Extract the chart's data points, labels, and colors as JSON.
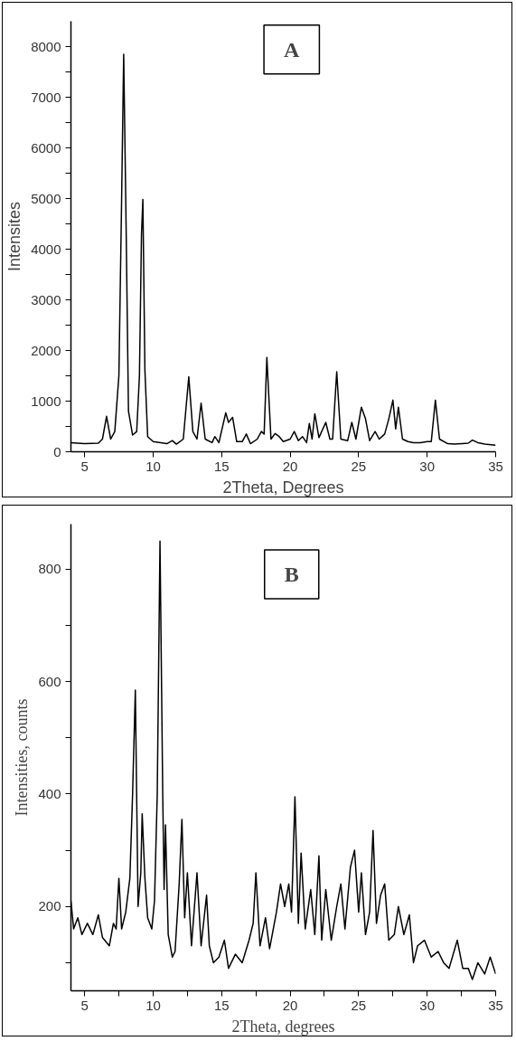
{
  "chart_data": [
    {
      "type": "line",
      "annotations": [
        "A"
      ],
      "xlabel": "2Theta, Degrees",
      "ylabel": "Intensites",
      "xlim": [
        4,
        35
      ],
      "ylim": [
        0,
        8500
      ],
      "xticks": [
        5,
        10,
        15,
        20,
        25,
        30,
        35
      ],
      "yticks": [
        0,
        {
          "value": 500,
          "label": null
        },
        1000,
        {
          "value": 1500,
          "label": null
        },
        2000,
        {
          "value": 2500,
          "label": null
        },
        3000,
        {
          "value": 3500,
          "label": null
        },
        4000,
        {
          "value": 4500,
          "label": null
        },
        5000,
        {
          "value": 5500,
          "label": null
        },
        6000,
        {
          "value": 6500,
          "label": null
        },
        7000,
        {
          "value": 7500,
          "label": null
        },
        8000
      ],
      "grid": false,
      "x": [
        4,
        5,
        6,
        6.3,
        6.6,
        6.9,
        7.2,
        7.5,
        7.7,
        7.85,
        8.0,
        8.2,
        8.5,
        8.8,
        9.0,
        9.15,
        9.25,
        9.4,
        9.6,
        10,
        11,
        11.4,
        11.7,
        12.2,
        12.6,
        12.9,
        13.2,
        13.5,
        13.8,
        14.3,
        14.5,
        14.8,
        15.3,
        15.5,
        15.8,
        16.1,
        16.5,
        16.8,
        17.1,
        17.6,
        17.9,
        18.1,
        18.3,
        18.6,
        18.9,
        19.2,
        19.5,
        20,
        20.3,
        20.6,
        20.9,
        21.2,
        21.4,
        21.6,
        21.8,
        22.1,
        22.6,
        22.9,
        23.1,
        23.4,
        23.7,
        24.2,
        24.5,
        24.8,
        25.2,
        25.5,
        25.8,
        26.2,
        26.5,
        26.9,
        27.2,
        27.5,
        27.7,
        27.9,
        28.2,
        28.6,
        29,
        29.5,
        30,
        30.3,
        30.6,
        30.9,
        31.5,
        32,
        33,
        33.3,
        33.7,
        34.2,
        35
      ],
      "series": [
        {
          "color": "#000000",
          "values": [
            180,
            160,
            170,
            250,
            700,
            250,
            400,
            1500,
            5000,
            7850,
            5000,
            800,
            330,
            400,
            1500,
            4300,
            4980,
            1600,
            300,
            200,
            160,
            220,
            150,
            250,
            1480,
            400,
            250,
            960,
            250,
            180,
            300,
            180,
            770,
            580,
            680,
            200,
            200,
            350,
            160,
            250,
            400,
            350,
            1860,
            250,
            360,
            300,
            200,
            250,
            400,
            220,
            300,
            180,
            560,
            250,
            750,
            280,
            580,
            250,
            250,
            1580,
            250,
            220,
            580,
            250,
            880,
            650,
            220,
            400,
            250,
            350,
            650,
            1020,
            450,
            880,
            250,
            200,
            180,
            180,
            200,
            200,
            1020,
            250,
            160,
            150,
            170,
            230,
            180,
            150,
            130
          ]
        }
      ]
    },
    {
      "type": "line",
      "annotations": [
        "B"
      ],
      "xlabel": "2Theta, degrees",
      "ylabel": "Intensities, counts",
      "xlim": [
        4,
        35
      ],
      "ylim": [
        50,
        880
      ],
      "xticks": [
        5,
        {
          "value": 7.5,
          "label": null
        },
        10,
        {
          "value": 12.5,
          "label": null
        },
        15,
        {
          "value": 17.5,
          "label": null
        },
        20,
        {
          "value": 22.5,
          "label": null
        },
        25,
        {
          "value": 27.5,
          "label": null
        },
        30,
        {
          "value": 32.5,
          "label": null
        },
        35
      ],
      "yticks": [
        {
          "value": 100,
          "label": null
        },
        200,
        {
          "value": 300,
          "label": null
        },
        400,
        {
          "value": 500,
          "label": null
        },
        600,
        {
          "value": 700,
          "label": null
        },
        800
      ],
      "grid": false,
      "x": [
        4,
        4.2,
        4.5,
        4.8,
        5.2,
        5.6,
        6,
        6.3,
        6.8,
        7.1,
        7.3,
        7.5,
        7.7,
        8,
        8.3,
        8.5,
        8.7,
        8.9,
        9.1,
        9.2,
        9.4,
        9.6,
        9.9,
        10.1,
        10.3,
        10.5,
        10.7,
        10.8,
        10.9,
        11.1,
        11.4,
        11.6,
        11.9,
        12.1,
        12.3,
        12.5,
        12.8,
        13.2,
        13.5,
        13.9,
        14.1,
        14.4,
        14.8,
        15.2,
        15.5,
        16,
        16.5,
        17.0,
        17.3,
        17.5,
        17.8,
        18.2,
        18.5,
        19,
        19.3,
        19.6,
        19.9,
        20.1,
        20.35,
        20.6,
        20.8,
        21.1,
        21.5,
        21.8,
        22.1,
        22.3,
        22.6,
        23,
        23.4,
        23.7,
        24,
        24.4,
        24.7,
        25,
        25.2,
        25.5,
        25.8,
        26.05,
        26.3,
        26.6,
        26.9,
        27.2,
        27.6,
        27.9,
        28.3,
        28.7,
        29,
        29.3,
        29.8,
        30.3,
        30.8,
        31.2,
        31.6,
        32.2,
        32.6,
        33,
        33.3,
        33.7,
        34.2,
        34.6,
        35
      ],
      "series": [
        {
          "color": "#000000",
          "values": [
            210,
            160,
            180,
            150,
            170,
            150,
            185,
            145,
            130,
            170,
            160,
            250,
            160,
            190,
            250,
            400,
            585,
            200,
            260,
            365,
            250,
            180,
            160,
            210,
            400,
            850,
            400,
            230,
            345,
            150,
            110,
            120,
            240,
            355,
            180,
            260,
            130,
            260,
            130,
            220,
            130,
            100,
            110,
            140,
            90,
            115,
            100,
            140,
            170,
            260,
            130,
            180,
            125,
            190,
            240,
            200,
            240,
            190,
            395,
            170,
            295,
            160,
            230,
            150,
            290,
            140,
            230,
            140,
            200,
            240,
            160,
            270,
            300,
            190,
            260,
            150,
            190,
            335,
            170,
            220,
            240,
            140,
            150,
            200,
            150,
            185,
            100,
            130,
            140,
            110,
            120,
            100,
            90,
            140,
            90,
            90,
            70,
            100,
            80,
            110,
            80
          ]
        }
      ]
    }
  ]
}
